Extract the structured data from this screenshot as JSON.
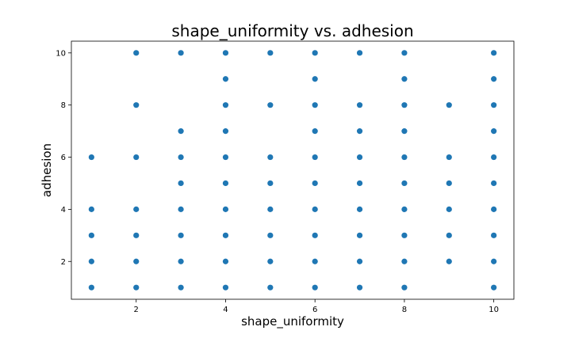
{
  "chart_data": {
    "type": "scatter",
    "title": "shape_uniformity vs. adhesion",
    "xlabel": "shape_uniformity",
    "ylabel": "adhesion",
    "xlim": [
      0.55,
      10.45
    ],
    "ylim": [
      0.55,
      10.45
    ],
    "xticks": [
      2,
      4,
      6,
      8,
      10
    ],
    "yticks": [
      2,
      4,
      6,
      8,
      10
    ],
    "grid": false,
    "marker_color": "#1f77b4",
    "series": [
      {
        "points": [
          [
            1,
            1
          ],
          [
            1,
            2
          ],
          [
            1,
            3
          ],
          [
            1,
            4
          ],
          [
            1,
            6
          ],
          [
            2,
            1
          ],
          [
            2,
            2
          ],
          [
            2,
            3
          ],
          [
            2,
            4
          ],
          [
            2,
            6
          ],
          [
            2,
            8
          ],
          [
            2,
            10
          ],
          [
            3,
            1
          ],
          [
            3,
            2
          ],
          [
            3,
            3
          ],
          [
            3,
            4
          ],
          [
            3,
            5
          ],
          [
            3,
            6
          ],
          [
            3,
            7
          ],
          [
            3,
            10
          ],
          [
            4,
            1
          ],
          [
            4,
            2
          ],
          [
            4,
            3
          ],
          [
            4,
            4
          ],
          [
            4,
            5
          ],
          [
            4,
            6
          ],
          [
            4,
            7
          ],
          [
            4,
            8
          ],
          [
            4,
            9
          ],
          [
            4,
            10
          ],
          [
            5,
            1
          ],
          [
            5,
            2
          ],
          [
            5,
            3
          ],
          [
            5,
            4
          ],
          [
            5,
            5
          ],
          [
            5,
            6
          ],
          [
            5,
            8
          ],
          [
            5,
            10
          ],
          [
            6,
            1
          ],
          [
            6,
            2
          ],
          [
            6,
            3
          ],
          [
            6,
            4
          ],
          [
            6,
            5
          ],
          [
            6,
            6
          ],
          [
            6,
            7
          ],
          [
            6,
            8
          ],
          [
            6,
            9
          ],
          [
            6,
            10
          ],
          [
            7,
            1
          ],
          [
            7,
            2
          ],
          [
            7,
            3
          ],
          [
            7,
            4
          ],
          [
            7,
            5
          ],
          [
            7,
            6
          ],
          [
            7,
            7
          ],
          [
            7,
            8
          ],
          [
            7,
            10
          ],
          [
            8,
            1
          ],
          [
            8,
            2
          ],
          [
            8,
            3
          ],
          [
            8,
            4
          ],
          [
            8,
            5
          ],
          [
            8,
            6
          ],
          [
            8,
            7
          ],
          [
            8,
            8
          ],
          [
            8,
            9
          ],
          [
            8,
            10
          ],
          [
            9,
            2
          ],
          [
            9,
            3
          ],
          [
            9,
            4
          ],
          [
            9,
            5
          ],
          [
            9,
            6
          ],
          [
            9,
            8
          ],
          [
            10,
            1
          ],
          [
            10,
            2
          ],
          [
            10,
            3
          ],
          [
            10,
            4
          ],
          [
            10,
            5
          ],
          [
            10,
            6
          ],
          [
            10,
            7
          ],
          [
            10,
            8
          ],
          [
            10,
            9
          ],
          [
            10,
            10
          ]
        ]
      }
    ]
  }
}
